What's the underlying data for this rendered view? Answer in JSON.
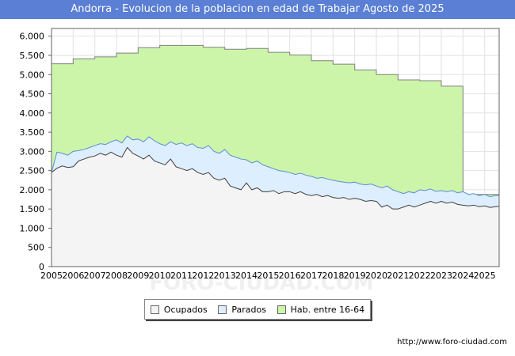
{
  "title": "Andorra - Evolucion de la poblacion en edad de Trabajar Agosto de 2025",
  "source": "http://www.foro-ciudad.com",
  "watermark": "FORO-CIUDAD.COM",
  "chart_data": {
    "type": "area",
    "title": "Andorra - Evolucion de la poblacion en edad de Trabajar Agosto de 2025",
    "ylim": [
      0,
      6200
    ],
    "xlim": [
      2005,
      2025.67
    ],
    "yticks": [
      0,
      500,
      1000,
      1500,
      2000,
      2500,
      3000,
      3500,
      4000,
      4500,
      5000,
      5500,
      6000
    ],
    "ytick_labels": [
      "0",
      "500",
      "1.000",
      "1.500",
      "2.000",
      "2.500",
      "3.000",
      "3.500",
      "4.000",
      "4.500",
      "5.000",
      "5.500",
      "6.000"
    ],
    "xticks": [
      2005,
      2006,
      2007,
      2008,
      2009,
      2010,
      2011,
      2012,
      2013,
      2014,
      2015,
      2016,
      2017,
      2018,
      2019,
      2020,
      2021,
      2022,
      2023,
      2024,
      2025
    ],
    "xtick_labels": [
      "2005",
      "2006",
      "2007",
      "2008",
      "2009",
      "2010",
      "2011",
      "2012",
      "2013",
      "2014",
      "2015",
      "2016",
      "2017",
      "2018",
      "2019",
      "2020",
      "2021",
      "2022",
      "2023",
      "2024",
      "2025"
    ],
    "grid": true,
    "legend_position": "bottom",
    "series": [
      {
        "name": "Hab. entre 16-64",
        "color": "#ccf5aa",
        "line_color": "#808080",
        "step": true,
        "x": [
          2005,
          2006,
          2007,
          2008,
          2009,
          2010,
          2011,
          2012,
          2013,
          2014,
          2015,
          2016,
          2017,
          2018,
          2019,
          2020,
          2021,
          2022,
          2023,
          2024,
          2025
        ],
        "values": [
          5280,
          5410,
          5460,
          5560,
          5700,
          5760,
          5760,
          5710,
          5660,
          5680,
          5580,
          5510,
          5360,
          5270,
          5120,
          5000,
          4860,
          4840,
          4700,
          1880,
          1880
        ]
      },
      {
        "name": "Parados",
        "color": "#ddeeff",
        "line_color": "#5b8fd0",
        "x": [
          2005,
          2005.25,
          2005.5,
          2005.75,
          2006,
          2006.25,
          2006.5,
          2006.75,
          2007,
          2007.25,
          2007.5,
          2007.75,
          2008,
          2008.25,
          2008.5,
          2008.75,
          2009,
          2009.25,
          2009.5,
          2009.75,
          2010,
          2010.25,
          2010.5,
          2010.75,
          2011,
          2011.25,
          2011.5,
          2011.75,
          2012,
          2012.25,
          2012.5,
          2012.75,
          2013,
          2013.25,
          2013.5,
          2013.75,
          2014,
          2014.25,
          2014.5,
          2014.75,
          2015,
          2015.25,
          2015.5,
          2015.75,
          2016,
          2016.25,
          2016.5,
          2016.75,
          2017,
          2017.25,
          2017.5,
          2017.75,
          2018,
          2018.25,
          2018.5,
          2018.75,
          2019,
          2019.25,
          2019.5,
          2019.75,
          2020,
          2020.25,
          2020.5,
          2020.75,
          2021,
          2021.25,
          2021.5,
          2021.75,
          2022,
          2022.25,
          2022.5,
          2022.75,
          2023,
          2023.25,
          2023.5,
          2023.75,
          2024,
          2024.25,
          2024.5,
          2024.75,
          2025,
          2025.25,
          2025.5,
          2025.67
        ],
        "values": [
          2450,
          2980,
          2950,
          2900,
          3000,
          3020,
          3050,
          3100,
          3150,
          3200,
          3180,
          3250,
          3300,
          3220,
          3400,
          3300,
          3320,
          3250,
          3380,
          3280,
          3200,
          3150,
          3250,
          3180,
          3220,
          3150,
          3200,
          3100,
          3080,
          3150,
          3000,
          2950,
          3050,
          2900,
          2850,
          2800,
          2780,
          2700,
          2750,
          2650,
          2600,
          2550,
          2500,
          2480,
          2450,
          2400,
          2430,
          2380,
          2350,
          2300,
          2320,
          2280,
          2250,
          2220,
          2200,
          2180,
          2200,
          2150,
          2130,
          2150,
          2100,
          2050,
          2100,
          2000,
          1950,
          1900,
          1950,
          1920,
          2000,
          1980,
          2020,
          1960,
          1980,
          1950,
          1980,
          1920,
          1950,
          1880,
          1900,
          1850,
          1880,
          1820,
          1850,
          1850
        ]
      },
      {
        "name": "Ocupados",
        "color": "#f4f4f4",
        "line_color": "#404040",
        "x": [
          2005,
          2005.25,
          2005.5,
          2005.75,
          2006,
          2006.25,
          2006.5,
          2006.75,
          2007,
          2007.25,
          2007.5,
          2007.75,
          2008,
          2008.25,
          2008.5,
          2008.75,
          2009,
          2009.25,
          2009.5,
          2009.75,
          2010,
          2010.25,
          2010.5,
          2010.75,
          2011,
          2011.25,
          2011.5,
          2011.75,
          2012,
          2012.25,
          2012.5,
          2012.75,
          2013,
          2013.25,
          2013.5,
          2013.75,
          2014,
          2014.25,
          2014.5,
          2014.75,
          2015,
          2015.25,
          2015.5,
          2015.75,
          2016,
          2016.25,
          2016.5,
          2016.75,
          2017,
          2017.25,
          2017.5,
          2017.75,
          2018,
          2018.25,
          2018.5,
          2018.75,
          2019,
          2019.25,
          2019.5,
          2019.75,
          2020,
          2020.25,
          2020.5,
          2020.75,
          2021,
          2021.25,
          2021.5,
          2021.75,
          2022,
          2022.25,
          2022.5,
          2022.75,
          2023,
          2023.25,
          2023.5,
          2023.75,
          2024,
          2024.25,
          2024.5,
          2024.75,
          2025,
          2025.25,
          2025.5,
          2025.67
        ],
        "values": [
          2450,
          2560,
          2620,
          2580,
          2600,
          2750,
          2800,
          2850,
          2880,
          2950,
          2900,
          2980,
          2900,
          2850,
          3100,
          2950,
          2880,
          2800,
          2900,
          2750,
          2700,
          2650,
          2800,
          2600,
          2550,
          2500,
          2550,
          2450,
          2400,
          2450,
          2300,
          2250,
          2300,
          2100,
          2050,
          2000,
          2180,
          2000,
          2050,
          1950,
          1950,
          1980,
          1900,
          1950,
          1950,
          1900,
          1950,
          1880,
          1850,
          1880,
          1820,
          1850,
          1800,
          1780,
          1800,
          1750,
          1780,
          1750,
          1700,
          1720,
          1700,
          1550,
          1600,
          1500,
          1500,
          1550,
          1600,
          1550,
          1600,
          1650,
          1700,
          1650,
          1700,
          1650,
          1680,
          1620,
          1600,
          1580,
          1600,
          1560,
          1580,
          1540,
          1560,
          1570
        ]
      }
    ]
  },
  "legend": {
    "items": [
      {
        "label": "Ocupados",
        "color": "#f4f4f4"
      },
      {
        "label": "Parados",
        "color": "#ddeeff"
      },
      {
        "label": "Hab. entre 16-64",
        "color": "#ccf5aa"
      }
    ]
  }
}
